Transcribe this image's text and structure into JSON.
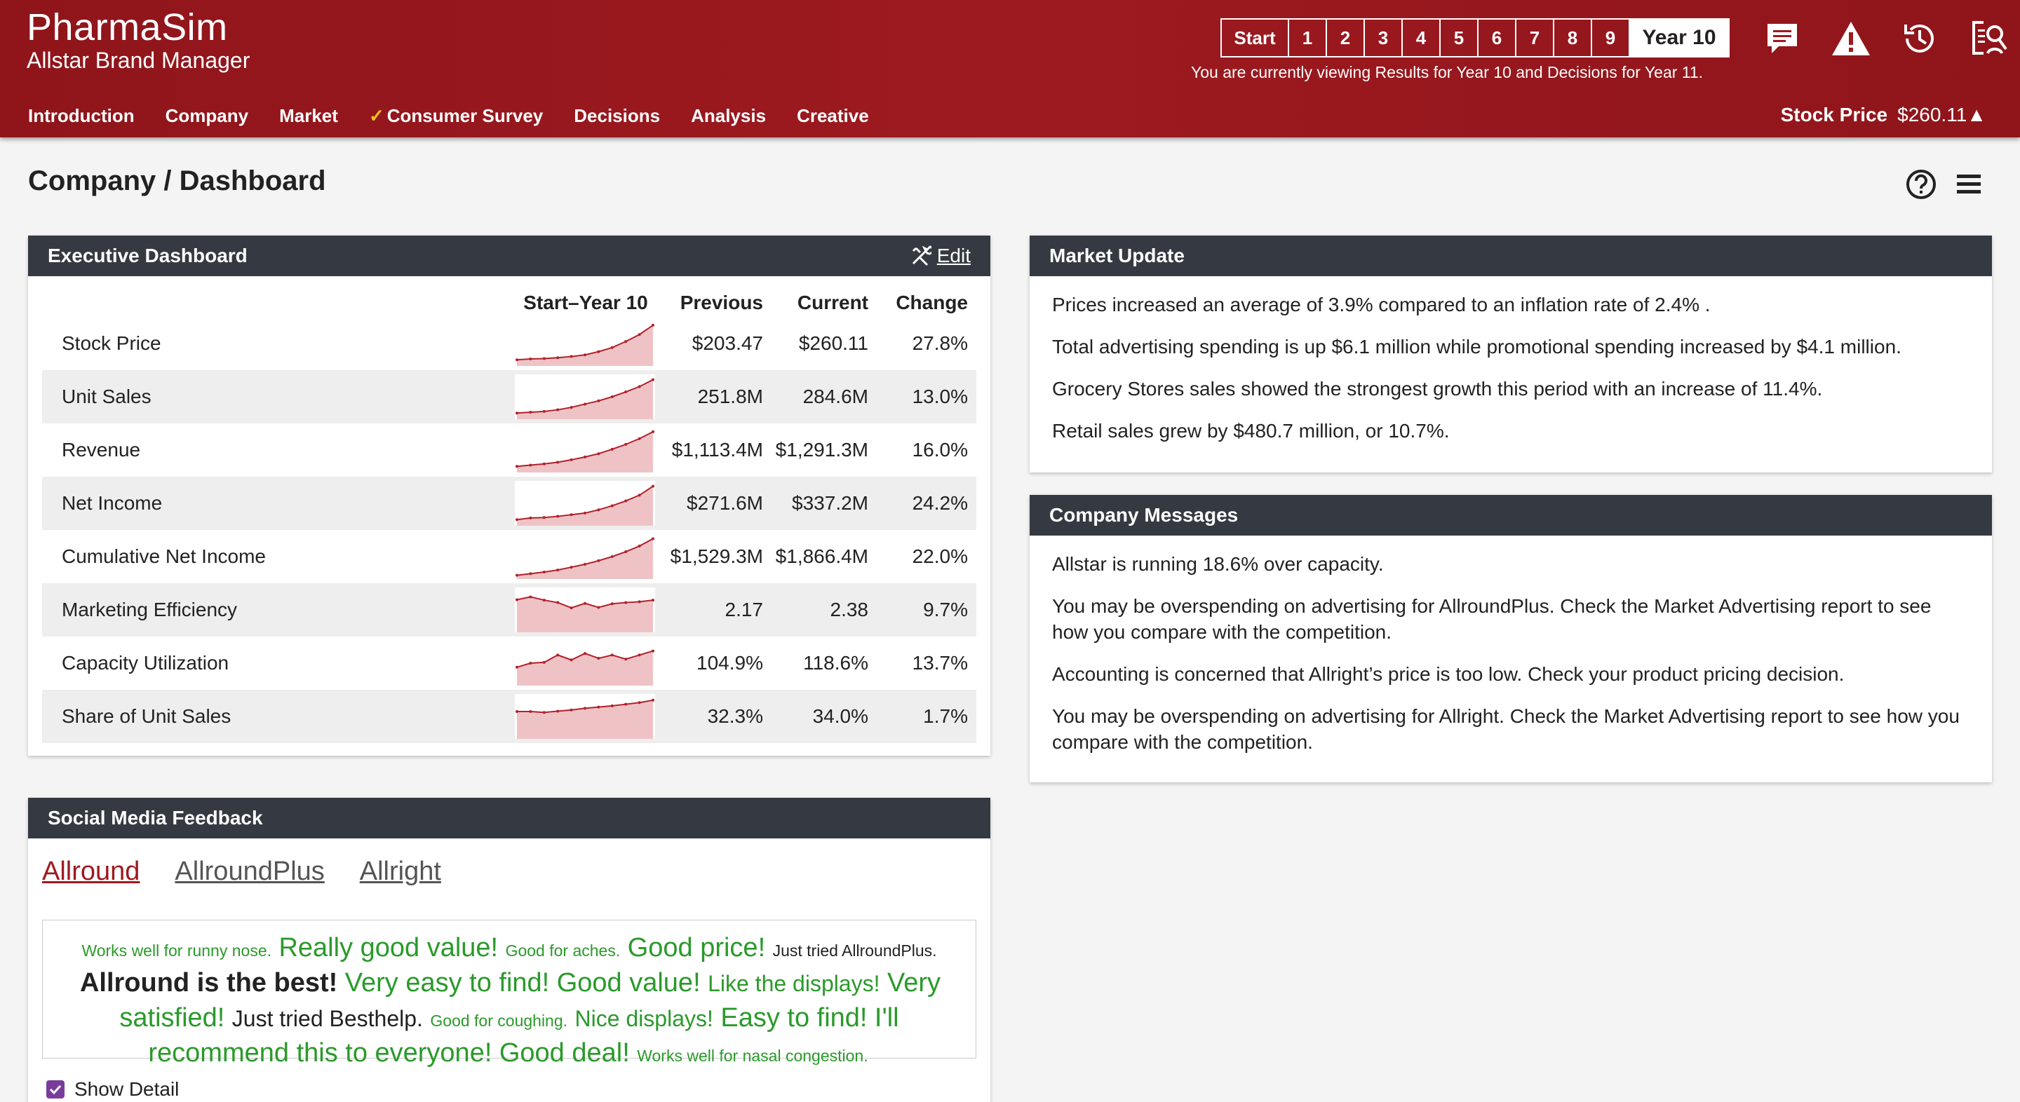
{
  "app": {
    "title": "PharmaSim",
    "subtitle": "Allstar Brand Manager"
  },
  "years": [
    "Start",
    "1",
    "2",
    "3",
    "4",
    "5",
    "6",
    "7",
    "8",
    "9",
    "Year 10"
  ],
  "view_note": "You are currently viewing Results for Year 10 and Decisions for Year 11.",
  "nav": [
    {
      "label": "Introduction"
    },
    {
      "label": "Company"
    },
    {
      "label": "Market"
    },
    {
      "label": "Consumer Survey",
      "check": "✓"
    },
    {
      "label": "Decisions"
    },
    {
      "label": "Analysis"
    },
    {
      "label": "Creative"
    }
  ],
  "stock": {
    "label": "Stock Price",
    "value": "$260.11▲"
  },
  "page_title": "Company / Dashboard",
  "exec": {
    "title": "Executive Dashboard",
    "edit": "Edit",
    "cols": {
      "spark": "Start–Year 10",
      "prev": "Previous",
      "curr": "Current",
      "chg": "Change"
    },
    "rows": [
      {
        "label": "Stock Price",
        "prev": "$203.47",
        "curr": "$260.11",
        "chg": "27.8%"
      },
      {
        "label": "Unit Sales",
        "prev": "251.8M",
        "curr": "284.6M",
        "chg": "13.0%"
      },
      {
        "label": "Revenue",
        "prev": "$1,113.4M",
        "curr": "$1,291.3M",
        "chg": "16.0%"
      },
      {
        "label": "Net Income",
        "prev": "$271.6M",
        "curr": "$337.2M",
        "chg": "24.2%"
      },
      {
        "label": "Cumulative Net Income",
        "prev": "$1,529.3M",
        "curr": "$1,866.4M",
        "chg": "22.0%"
      },
      {
        "label": "Marketing Efficiency",
        "prev": "2.17",
        "curr": "2.38",
        "chg": "9.7%"
      },
      {
        "label": "Capacity Utilization",
        "prev": "104.9%",
        "curr": "118.6%",
        "chg": "13.7%"
      },
      {
        "label": "Share of Unit Sales",
        "prev": "32.3%",
        "curr": "34.0%",
        "chg": "1.7%"
      }
    ]
  },
  "sparklines": [
    [
      0.1,
      0.12,
      0.13,
      0.15,
      0.18,
      0.22,
      0.3,
      0.4,
      0.55,
      0.72,
      0.95
    ],
    [
      0.1,
      0.12,
      0.14,
      0.18,
      0.24,
      0.32,
      0.4,
      0.5,
      0.62,
      0.75,
      0.92
    ],
    [
      0.1,
      0.13,
      0.16,
      0.2,
      0.26,
      0.33,
      0.41,
      0.52,
      0.64,
      0.78,
      0.95
    ],
    [
      0.1,
      0.14,
      0.15,
      0.18,
      0.22,
      0.26,
      0.34,
      0.44,
      0.56,
      0.7,
      0.92
    ],
    [
      0.04,
      0.08,
      0.12,
      0.17,
      0.24,
      0.31,
      0.4,
      0.5,
      0.62,
      0.76,
      0.94
    ],
    [
      0.75,
      0.82,
      0.74,
      0.68,
      0.55,
      0.66,
      0.56,
      0.65,
      0.68,
      0.7,
      0.74
    ],
    [
      0.4,
      0.5,
      0.52,
      0.7,
      0.58,
      0.74,
      0.62,
      0.7,
      0.6,
      0.7,
      0.8
    ],
    [
      0.62,
      0.62,
      0.6,
      0.63,
      0.66,
      0.7,
      0.73,
      0.76,
      0.8,
      0.84,
      0.9
    ]
  ],
  "market": {
    "title": "Market Update",
    "items": [
      "Prices increased an average of 3.9% compared to an inflation rate of 2.4% .",
      "Total advertising spending is up $6.1 million while promotional spending increased by $4.1 million.",
      "Grocery Stores sales showed the strongest growth this period with an increase of 11.4%.",
      "Retail sales grew by $480.7 million, or 10.7%."
    ]
  },
  "messages": {
    "title": "Company Messages",
    "items": [
      "Allstar is running 18.6% over capacity.",
      "You may be overspending on advertising for AllroundPlus. Check the Market Advertising report to see how you compare with the competition.",
      "Accounting is concerned that Allright’s price is too low. Check your product pricing decision.",
      "You may be overspending on advertising for Allright. Check the Market Advertising report to see how you compare with the competition."
    ]
  },
  "social": {
    "title": "Social Media Feedback",
    "tabs": [
      "Allround",
      "AllroundPlus",
      "Allright"
    ],
    "feedback": [
      {
        "t": "Works well for runny nose.",
        "s": "sm"
      },
      {
        "t": "Really good value!",
        "s": "lg"
      },
      {
        "t": "Good for aches.",
        "s": "sm"
      },
      {
        "t": "Good price!",
        "s": "lg"
      },
      {
        "t": "Just tried AllroundPlus.",
        "s": "sm",
        "dark": true
      },
      {
        "t": "Allround is the best!",
        "s": "lg",
        "dark": true,
        "bold": true
      },
      {
        "t": "Very easy to find!",
        "s": "lg"
      },
      {
        "t": "Good value!",
        "s": "lg"
      },
      {
        "t": "Like the displays!",
        "s": "md"
      },
      {
        "t": "Very satisfied!",
        "s": "lg"
      },
      {
        "t": "Just tried Besthelp.",
        "s": "md",
        "dark": true
      },
      {
        "t": "Good for coughing.",
        "s": "sm"
      },
      {
        "t": "Nice displays!",
        "s": "md"
      },
      {
        "t": "Easy to find!",
        "s": "lg"
      },
      {
        "t": "I'll recommend this to everyone!",
        "s": "lg"
      },
      {
        "t": "Good deal!",
        "s": "lg"
      },
      {
        "t": "Works well for nasal congestion.",
        "s": "sm"
      }
    ],
    "show_detail": "Show Detail"
  }
}
